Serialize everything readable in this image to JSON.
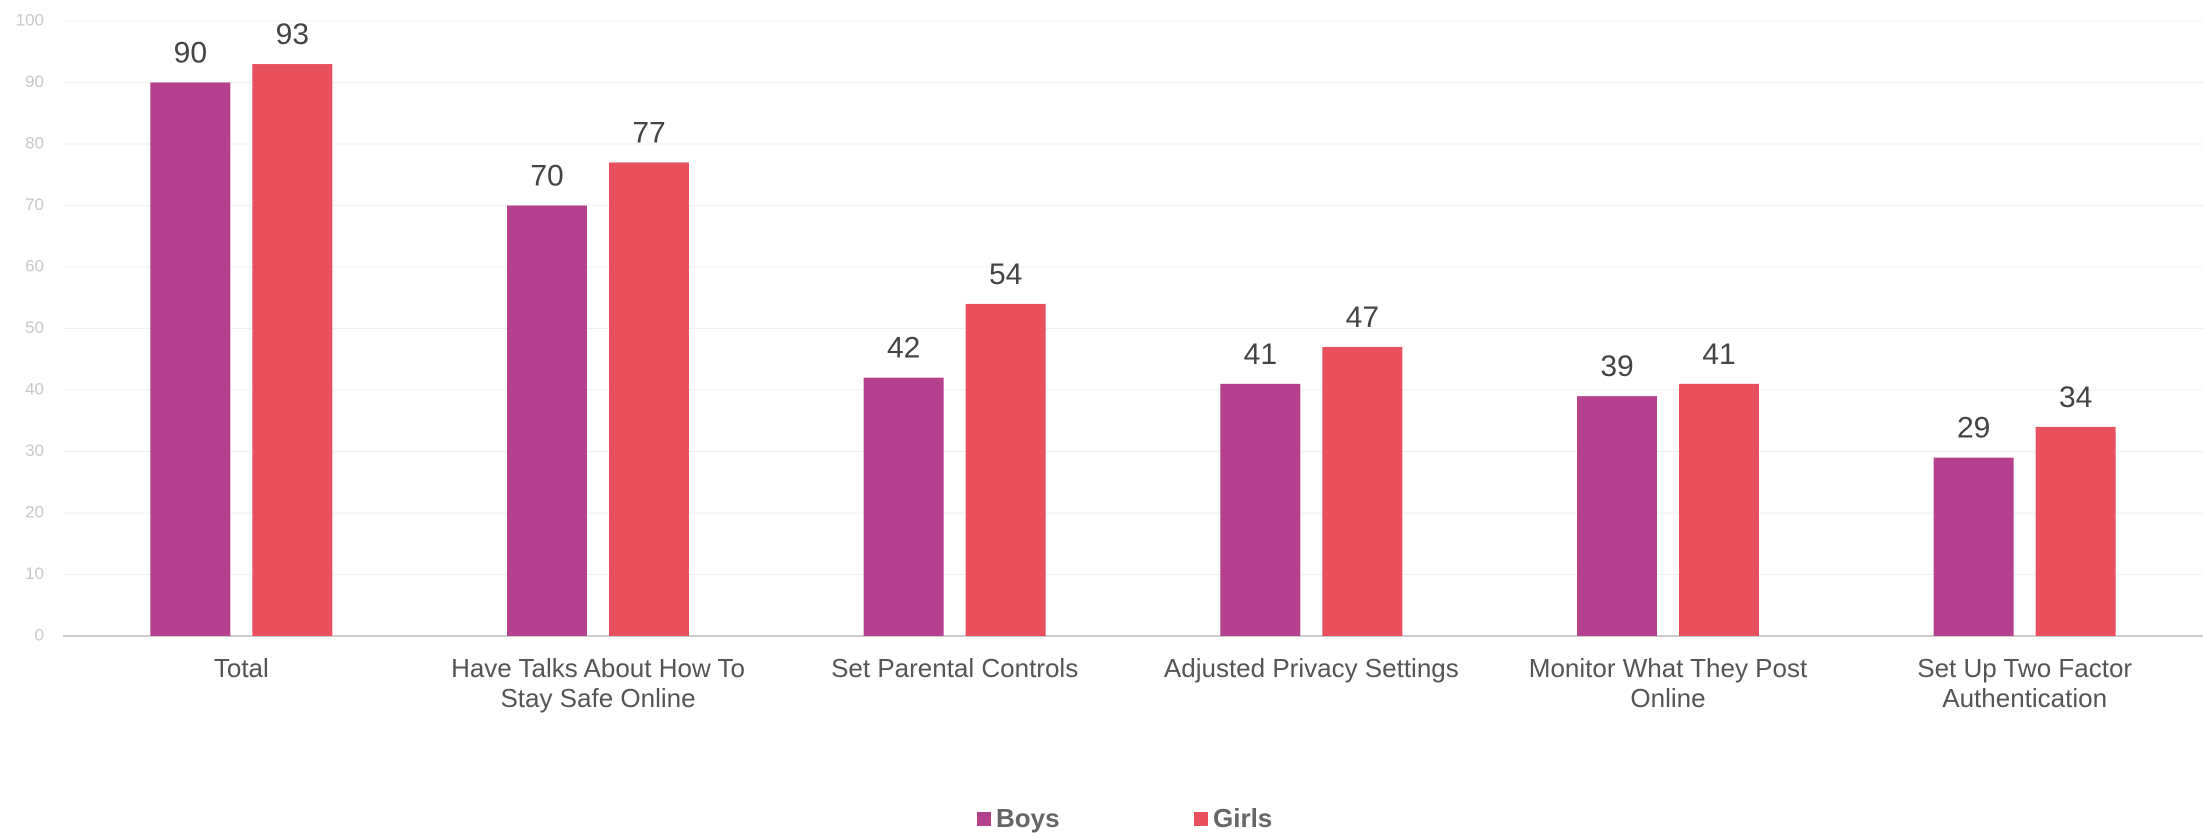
{
  "chart_data": {
    "type": "bar",
    "categories": [
      "Total",
      "Have Talks About How To Stay Safe Online",
      "Set Parental Controls",
      "Adjusted Privacy Settings",
      "Monitor What They Post Online",
      "Set Up Two Factor Authentication"
    ],
    "series": [
      {
        "name": "Boys",
        "color": "#b5408e",
        "values": [
          90,
          70,
          42,
          41,
          39,
          29
        ]
      },
      {
        "name": "Girls",
        "color": "#e9505e",
        "values": [
          93,
          77,
          54,
          47,
          41,
          34
        ]
      }
    ],
    "ylim": [
      0,
      100
    ],
    "yticks": [
      0,
      10,
      20,
      30,
      40,
      50,
      60,
      70,
      80,
      90,
      100
    ],
    "grid": true,
    "legend": "bottom"
  }
}
